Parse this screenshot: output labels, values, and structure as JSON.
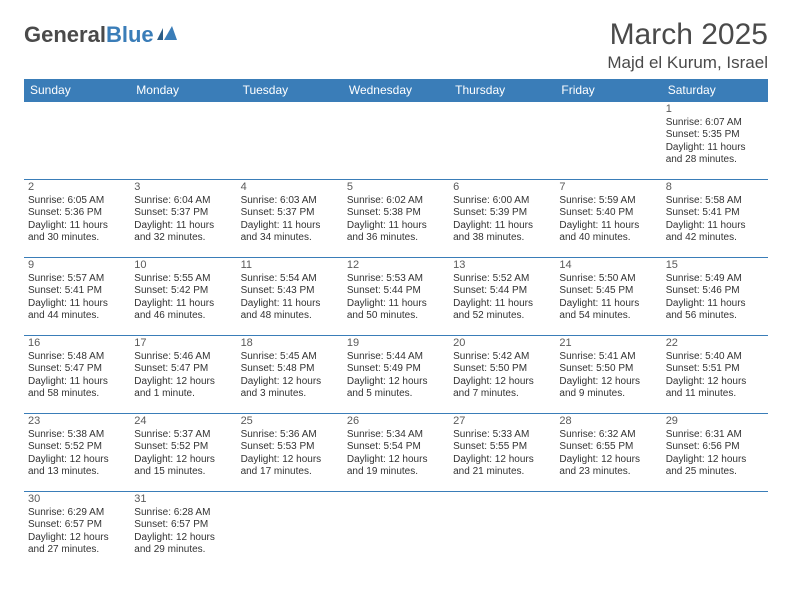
{
  "logo": {
    "text1": "General",
    "text2": "Blue"
  },
  "title": "March 2025",
  "location": "Majd el Kurum, Israel",
  "header_bg": "#3a7db8",
  "days": [
    "Sunday",
    "Monday",
    "Tuesday",
    "Wednesday",
    "Thursday",
    "Friday",
    "Saturday"
  ],
  "weeks": [
    [
      null,
      null,
      null,
      null,
      null,
      null,
      {
        "n": "1",
        "sr": "Sunrise: 6:07 AM",
        "ss": "Sunset: 5:35 PM",
        "d1": "Daylight: 11 hours",
        "d2": "and 28 minutes."
      }
    ],
    [
      {
        "n": "2",
        "sr": "Sunrise: 6:05 AM",
        "ss": "Sunset: 5:36 PM",
        "d1": "Daylight: 11 hours",
        "d2": "and 30 minutes."
      },
      {
        "n": "3",
        "sr": "Sunrise: 6:04 AM",
        "ss": "Sunset: 5:37 PM",
        "d1": "Daylight: 11 hours",
        "d2": "and 32 minutes."
      },
      {
        "n": "4",
        "sr": "Sunrise: 6:03 AM",
        "ss": "Sunset: 5:37 PM",
        "d1": "Daylight: 11 hours",
        "d2": "and 34 minutes."
      },
      {
        "n": "5",
        "sr": "Sunrise: 6:02 AM",
        "ss": "Sunset: 5:38 PM",
        "d1": "Daylight: 11 hours",
        "d2": "and 36 minutes."
      },
      {
        "n": "6",
        "sr": "Sunrise: 6:00 AM",
        "ss": "Sunset: 5:39 PM",
        "d1": "Daylight: 11 hours",
        "d2": "and 38 minutes."
      },
      {
        "n": "7",
        "sr": "Sunrise: 5:59 AM",
        "ss": "Sunset: 5:40 PM",
        "d1": "Daylight: 11 hours",
        "d2": "and 40 minutes."
      },
      {
        "n": "8",
        "sr": "Sunrise: 5:58 AM",
        "ss": "Sunset: 5:41 PM",
        "d1": "Daylight: 11 hours",
        "d2": "and 42 minutes."
      }
    ],
    [
      {
        "n": "9",
        "sr": "Sunrise: 5:57 AM",
        "ss": "Sunset: 5:41 PM",
        "d1": "Daylight: 11 hours",
        "d2": "and 44 minutes."
      },
      {
        "n": "10",
        "sr": "Sunrise: 5:55 AM",
        "ss": "Sunset: 5:42 PM",
        "d1": "Daylight: 11 hours",
        "d2": "and 46 minutes."
      },
      {
        "n": "11",
        "sr": "Sunrise: 5:54 AM",
        "ss": "Sunset: 5:43 PM",
        "d1": "Daylight: 11 hours",
        "d2": "and 48 minutes."
      },
      {
        "n": "12",
        "sr": "Sunrise: 5:53 AM",
        "ss": "Sunset: 5:44 PM",
        "d1": "Daylight: 11 hours",
        "d2": "and 50 minutes."
      },
      {
        "n": "13",
        "sr": "Sunrise: 5:52 AM",
        "ss": "Sunset: 5:44 PM",
        "d1": "Daylight: 11 hours",
        "d2": "and 52 minutes."
      },
      {
        "n": "14",
        "sr": "Sunrise: 5:50 AM",
        "ss": "Sunset: 5:45 PM",
        "d1": "Daylight: 11 hours",
        "d2": "and 54 minutes."
      },
      {
        "n": "15",
        "sr": "Sunrise: 5:49 AM",
        "ss": "Sunset: 5:46 PM",
        "d1": "Daylight: 11 hours",
        "d2": "and 56 minutes."
      }
    ],
    [
      {
        "n": "16",
        "sr": "Sunrise: 5:48 AM",
        "ss": "Sunset: 5:47 PM",
        "d1": "Daylight: 11 hours",
        "d2": "and 58 minutes."
      },
      {
        "n": "17",
        "sr": "Sunrise: 5:46 AM",
        "ss": "Sunset: 5:47 PM",
        "d1": "Daylight: 12 hours",
        "d2": "and 1 minute."
      },
      {
        "n": "18",
        "sr": "Sunrise: 5:45 AM",
        "ss": "Sunset: 5:48 PM",
        "d1": "Daylight: 12 hours",
        "d2": "and 3 minutes."
      },
      {
        "n": "19",
        "sr": "Sunrise: 5:44 AM",
        "ss": "Sunset: 5:49 PM",
        "d1": "Daylight: 12 hours",
        "d2": "and 5 minutes."
      },
      {
        "n": "20",
        "sr": "Sunrise: 5:42 AM",
        "ss": "Sunset: 5:50 PM",
        "d1": "Daylight: 12 hours",
        "d2": "and 7 minutes."
      },
      {
        "n": "21",
        "sr": "Sunrise: 5:41 AM",
        "ss": "Sunset: 5:50 PM",
        "d1": "Daylight: 12 hours",
        "d2": "and 9 minutes."
      },
      {
        "n": "22",
        "sr": "Sunrise: 5:40 AM",
        "ss": "Sunset: 5:51 PM",
        "d1": "Daylight: 12 hours",
        "d2": "and 11 minutes."
      }
    ],
    [
      {
        "n": "23",
        "sr": "Sunrise: 5:38 AM",
        "ss": "Sunset: 5:52 PM",
        "d1": "Daylight: 12 hours",
        "d2": "and 13 minutes."
      },
      {
        "n": "24",
        "sr": "Sunrise: 5:37 AM",
        "ss": "Sunset: 5:52 PM",
        "d1": "Daylight: 12 hours",
        "d2": "and 15 minutes."
      },
      {
        "n": "25",
        "sr": "Sunrise: 5:36 AM",
        "ss": "Sunset: 5:53 PM",
        "d1": "Daylight: 12 hours",
        "d2": "and 17 minutes."
      },
      {
        "n": "26",
        "sr": "Sunrise: 5:34 AM",
        "ss": "Sunset: 5:54 PM",
        "d1": "Daylight: 12 hours",
        "d2": "and 19 minutes."
      },
      {
        "n": "27",
        "sr": "Sunrise: 5:33 AM",
        "ss": "Sunset: 5:55 PM",
        "d1": "Daylight: 12 hours",
        "d2": "and 21 minutes."
      },
      {
        "n": "28",
        "sr": "Sunrise: 6:32 AM",
        "ss": "Sunset: 6:55 PM",
        "d1": "Daylight: 12 hours",
        "d2": "and 23 minutes."
      },
      {
        "n": "29",
        "sr": "Sunrise: 6:31 AM",
        "ss": "Sunset: 6:56 PM",
        "d1": "Daylight: 12 hours",
        "d2": "and 25 minutes."
      }
    ],
    [
      {
        "n": "30",
        "sr": "Sunrise: 6:29 AM",
        "ss": "Sunset: 6:57 PM",
        "d1": "Daylight: 12 hours",
        "d2": "and 27 minutes."
      },
      {
        "n": "31",
        "sr": "Sunrise: 6:28 AM",
        "ss": "Sunset: 6:57 PM",
        "d1": "Daylight: 12 hours",
        "d2": "and 29 minutes."
      },
      null,
      null,
      null,
      null,
      null
    ]
  ]
}
